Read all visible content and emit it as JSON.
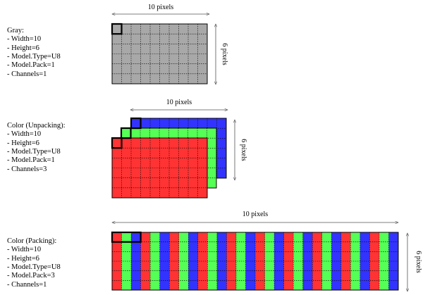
{
  "colors": {
    "gray": "#a8a8a8",
    "red": "#ff3333",
    "green": "#55ff55",
    "blue": "#3333ff",
    "grid": "#000000",
    "highlight": "#000000"
  },
  "panels": [
    {
      "id": "gray",
      "lines": [
        "Gray:",
        "- Width=10",
        "- Height=6",
        "- Model.Type=U8",
        "- Model.Pack=1",
        "- Channels=1"
      ],
      "width_label": "10 pixels",
      "height_label": "6 pixels",
      "grid_columns": 10,
      "grid_rows": 6
    },
    {
      "id": "unpacking",
      "lines": [
        "Color (Unpacking):",
        "- Width=10",
        "- Height=6",
        "- Model.Type=U8",
        "- Model.Pack=1",
        "- Channels=3"
      ],
      "width_label": "10 pixels",
      "height_label": "6 pixels",
      "grid_columns": 10,
      "grid_rows": 6,
      "planes": [
        "blue",
        "green",
        "red"
      ]
    },
    {
      "id": "packing",
      "lines": [
        "Color (Packing):",
        "- Width=10",
        "- Height=6",
        "- Model.Type=U8",
        "- Model.Pack=3",
        "- Channels=1"
      ],
      "width_label": "10 pixels",
      "height_label": "6 pixels",
      "grid_columns": 30,
      "grid_rows": 6,
      "stripe_order": [
        "red",
        "green",
        "blue"
      ]
    }
  ]
}
